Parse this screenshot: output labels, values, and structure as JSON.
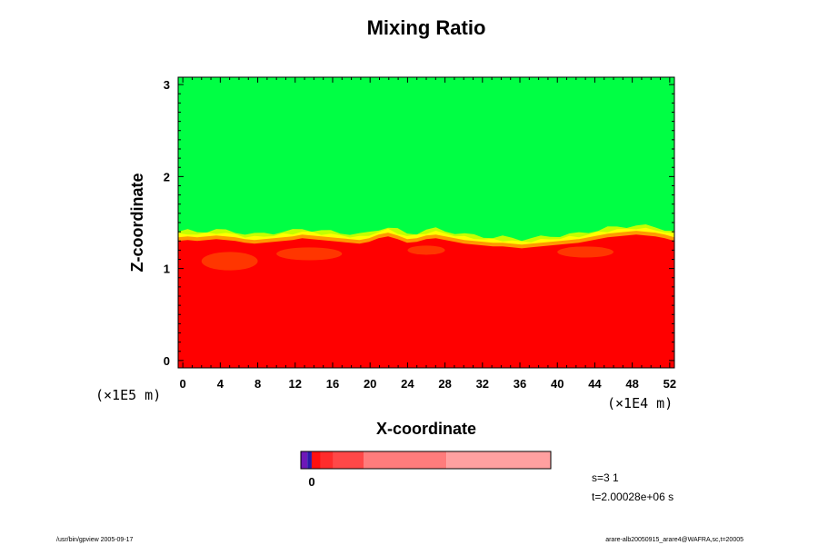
{
  "chart_data": {
    "type": "heatmap",
    "title": "Mixing Ratio",
    "xlabel": "X-coordinate",
    "ylabel": "Z-coordinate",
    "x_unit": "(×1E4 m)",
    "y_unit": "(×1E5 m)",
    "xlim": [
      -0.5,
      52.5
    ],
    "ylim": [
      -0.08,
      3.08
    ],
    "x_ticks": [
      "0",
      "4",
      "8",
      "12",
      "16",
      "20",
      "24",
      "28",
      "32",
      "36",
      "40",
      "44",
      "48",
      "52"
    ],
    "y_ticks": [
      "0",
      "1",
      "2",
      "3"
    ],
    "interface_height": [
      1.3,
      1.31,
      1.3,
      1.31,
      1.32,
      1.31,
      1.3,
      1.28,
      1.27,
      1.28,
      1.29,
      1.3,
      1.31,
      1.33,
      1.32,
      1.31,
      1.3,
      1.29,
      1.28,
      1.27,
      1.29,
      1.33,
      1.35,
      1.32,
      1.28,
      1.29,
      1.32,
      1.33,
      1.31,
      1.29,
      1.27,
      1.26,
      1.25,
      1.24,
      1.24,
      1.23,
      1.22,
      1.23,
      1.24,
      1.25,
      1.26,
      1.27,
      1.28,
      1.3,
      1.32,
      1.34,
      1.35,
      1.36,
      1.37,
      1.36,
      1.35,
      1.33,
      1.3
    ],
    "colors": {
      "upper": "#00ff44",
      "lower": "#ff0000",
      "transition": [
        "#ffff00",
        "#c4ff00",
        "#ff9900",
        "#ff4400"
      ]
    },
    "colorbar": {
      "label": "0",
      "segments": [
        {
          "color": "#6e18b8",
          "width": 3
        },
        {
          "color": "#2a1aa8",
          "width": 2
        },
        {
          "color": "#ff1010",
          "width": 4
        },
        {
          "color": "#ff2c2c",
          "width": 6
        },
        {
          "color": "#ff4848",
          "width": 14
        },
        {
          "color": "#ff7c7c",
          "width": 38
        },
        {
          "color": "#ffa0a0",
          "width": 48
        }
      ]
    }
  },
  "info": {
    "step": "s=3 1",
    "time": "t=2.00028e+06 s",
    "footer_left": "/usr/bin/gpview 2005-09-17",
    "footer_right": "arare-alb20050915_arare4@WAFRA,sc,t=20005"
  }
}
